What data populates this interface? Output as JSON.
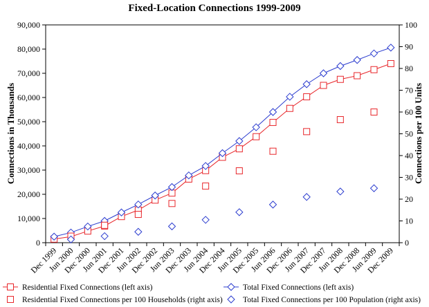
{
  "chart_data": {
    "type": "line",
    "title": "Fixed-Location Connections 1999-2009",
    "ylabel_left": "Connections in Thousands",
    "ylabel_right": "Connections per 100 Units",
    "x_categories": [
      "Dec 1999",
      "Jun 2000",
      "Dec 2000",
      "Jun 2001",
      "Dec 2001",
      "Jun 2002",
      "Dec 2002",
      "Jun 2003",
      "Dec 2003",
      "Jun 2004",
      "Dec 2004",
      "Jun 2005",
      "Dec 2005",
      "Jun 2006",
      "Dec 2006",
      "Jun 2007",
      "Dec 2007",
      "Jun 2008",
      "Dec 2008",
      "Jun 2009",
      "Dec 2009"
    ],
    "left_axis": {
      "min": 0,
      "max": 90000,
      "step": 10000,
      "tick_labels": [
        "0",
        "10,000",
        "20,000",
        "30,000",
        "40,000",
        "50,000",
        "60,000",
        "70,000",
        "80,000",
        "90,000"
      ]
    },
    "right_axis": {
      "min": 0,
      "max": 100,
      "step": 10,
      "tick_labels": [
        "0",
        "10",
        "20",
        "30",
        "40",
        "50",
        "60",
        "70",
        "80",
        "90",
        "100"
      ]
    },
    "series": [
      {
        "name": "Residential Fixed Connections (left axis)",
        "axis": "left",
        "style": "line",
        "marker": "square",
        "color": "#e8262a",
        "x_index": [
          0,
          1,
          2,
          3,
          4,
          5,
          6,
          7,
          8,
          9,
          10,
          11,
          12,
          13,
          14,
          15,
          16,
          17,
          18,
          19,
          20
        ],
        "values": [
          1500,
          2500,
          4800,
          6900,
          10800,
          13500,
          17600,
          20500,
          26300,
          29800,
          35300,
          38800,
          43800,
          49700,
          55500,
          60300,
          65000,
          67500,
          69000,
          71500,
          74000
        ]
      },
      {
        "name": "Total Fixed Connections (left axis)",
        "axis": "left",
        "style": "line",
        "marker": "diamond",
        "color": "#2b3ccf",
        "x_index": [
          0,
          1,
          2,
          3,
          4,
          5,
          6,
          7,
          8,
          9,
          10,
          11,
          12,
          13,
          14,
          15,
          16,
          17,
          18,
          19,
          20
        ],
        "values": [
          2500,
          4200,
          6700,
          9000,
          12500,
          15800,
          19500,
          23000,
          27800,
          31700,
          37000,
          42000,
          47700,
          54000,
          60300,
          65500,
          70000,
          73000,
          75500,
          78200,
          80600
        ]
      },
      {
        "name": "Residential Fixed Connections per 100 Households (right axis)",
        "axis": "right",
        "style": "markers",
        "marker": "square",
        "color": "#e8262a",
        "x_index": [
          1,
          3,
          5,
          7,
          9,
          11,
          13,
          15,
          17,
          19
        ],
        "values": [
          3,
          8,
          13,
          18,
          26,
          33,
          42,
          51,
          56.5,
          60
        ]
      },
      {
        "name": "Total Fixed Connections per 100 Population (right axis)",
        "axis": "right",
        "style": "markers",
        "marker": "diamond",
        "color": "#2b3ccf",
        "x_index": [
          1,
          3,
          5,
          7,
          9,
          11,
          13,
          15,
          17,
          19
        ],
        "values": [
          1.5,
          3,
          5,
          7.5,
          10.5,
          14,
          17.5,
          21,
          23.5,
          25
        ]
      }
    ],
    "legend_position": "bottom",
    "grid": false
  },
  "colors": {
    "residential": "#e8262a",
    "total": "#2b3ccf",
    "axis": "#000000"
  }
}
